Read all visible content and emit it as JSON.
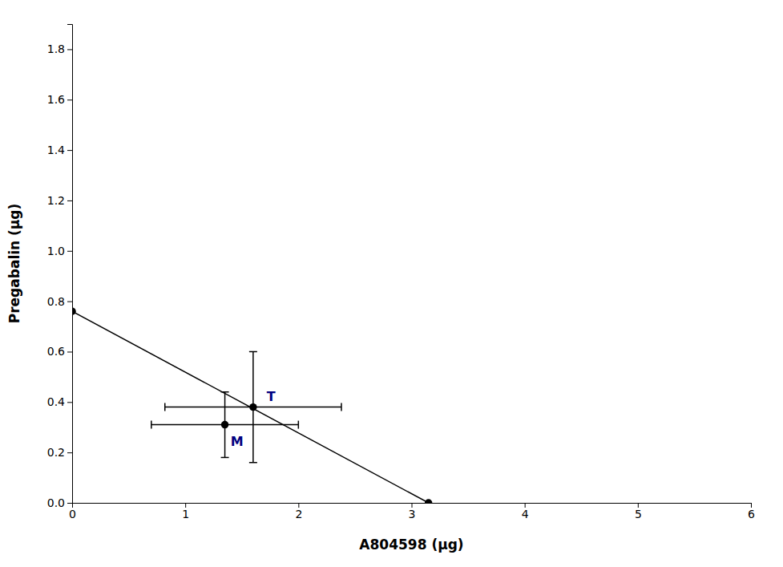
{
  "chart_data": {
    "type": "scatter",
    "xlabel": "A804598 (μg)",
    "ylabel": "Pregabalin (μg)",
    "xlim": [
      0,
      6
    ],
    "ylim": [
      0.0,
      1.9
    ],
    "xticks": [
      0,
      1,
      2,
      3,
      4,
      5,
      6
    ],
    "yticks": [
      {
        "value": 0.0,
        "label": "0.0"
      },
      0.2,
      0.4,
      0.6,
      0.8,
      {
        "value": 1.0,
        "label": "1.0"
      },
      1.2,
      1.4,
      1.6,
      1.8
    ],
    "grid": false,
    "series": [
      {
        "type": "line",
        "color": "#000000",
        "line_style": "solid",
        "x": [
          0,
          3.15
        ],
        "values": [
          0.76,
          0.0
        ]
      },
      {
        "type": "scatter",
        "color": "#000000",
        "marker": "circle",
        "x": [
          0.0,
          1.35,
          1.6,
          3.15
        ],
        "values": [
          0.76,
          0.31,
          0.38,
          0.0
        ],
        "xerr_lo": [
          null,
          0.65,
          0.78,
          null
        ],
        "xerr_hi": [
          null,
          0.65,
          0.78,
          null
        ],
        "yerr_lo": [
          null,
          0.13,
          0.22,
          null
        ],
        "yerr_hi": [
          null,
          0.13,
          0.22,
          null
        ]
      }
    ],
    "annotations": [
      {
        "text": "M",
        "x": 1.4,
        "y": 0.24,
        "color": "#000080"
      },
      {
        "text": "T",
        "x": 1.72,
        "y": 0.42,
        "color": "#000080"
      }
    ]
  }
}
